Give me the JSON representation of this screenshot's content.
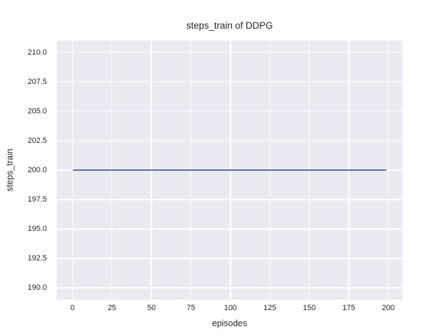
{
  "chart_data": {
    "type": "line",
    "title": "steps_train of DDPG",
    "xlabel": "episodes",
    "ylabel": "steps_train",
    "xlim": [
      -10,
      209
    ],
    "ylim": [
      189,
      211
    ],
    "x_ticks": [
      0,
      25,
      50,
      75,
      100,
      125,
      150,
      175,
      200
    ],
    "x_tick_labels": [
      "0",
      "25",
      "50",
      "75",
      "100",
      "125",
      "150",
      "175",
      "200"
    ],
    "y_ticks": [
      190.0,
      192.5,
      195.0,
      197.5,
      200.0,
      202.5,
      205.0,
      207.5,
      210.0
    ],
    "y_tick_labels": [
      "190.0",
      "192.5",
      "195.0",
      "197.5",
      "200.0",
      "202.5",
      "205.0",
      "207.5",
      "210.0"
    ],
    "grid": true,
    "legend": "none",
    "plot_background": "#eaeaf2",
    "grid_color": "#ffffff",
    "text_color": "#262626",
    "series": [
      {
        "name": "steps_train",
        "color": "#4c72b0",
        "x": [
          0,
          199
        ],
        "y": [
          200,
          200
        ],
        "shape": "constant horizontal line at y=200 spanning episodes 0 to 199"
      }
    ]
  }
}
